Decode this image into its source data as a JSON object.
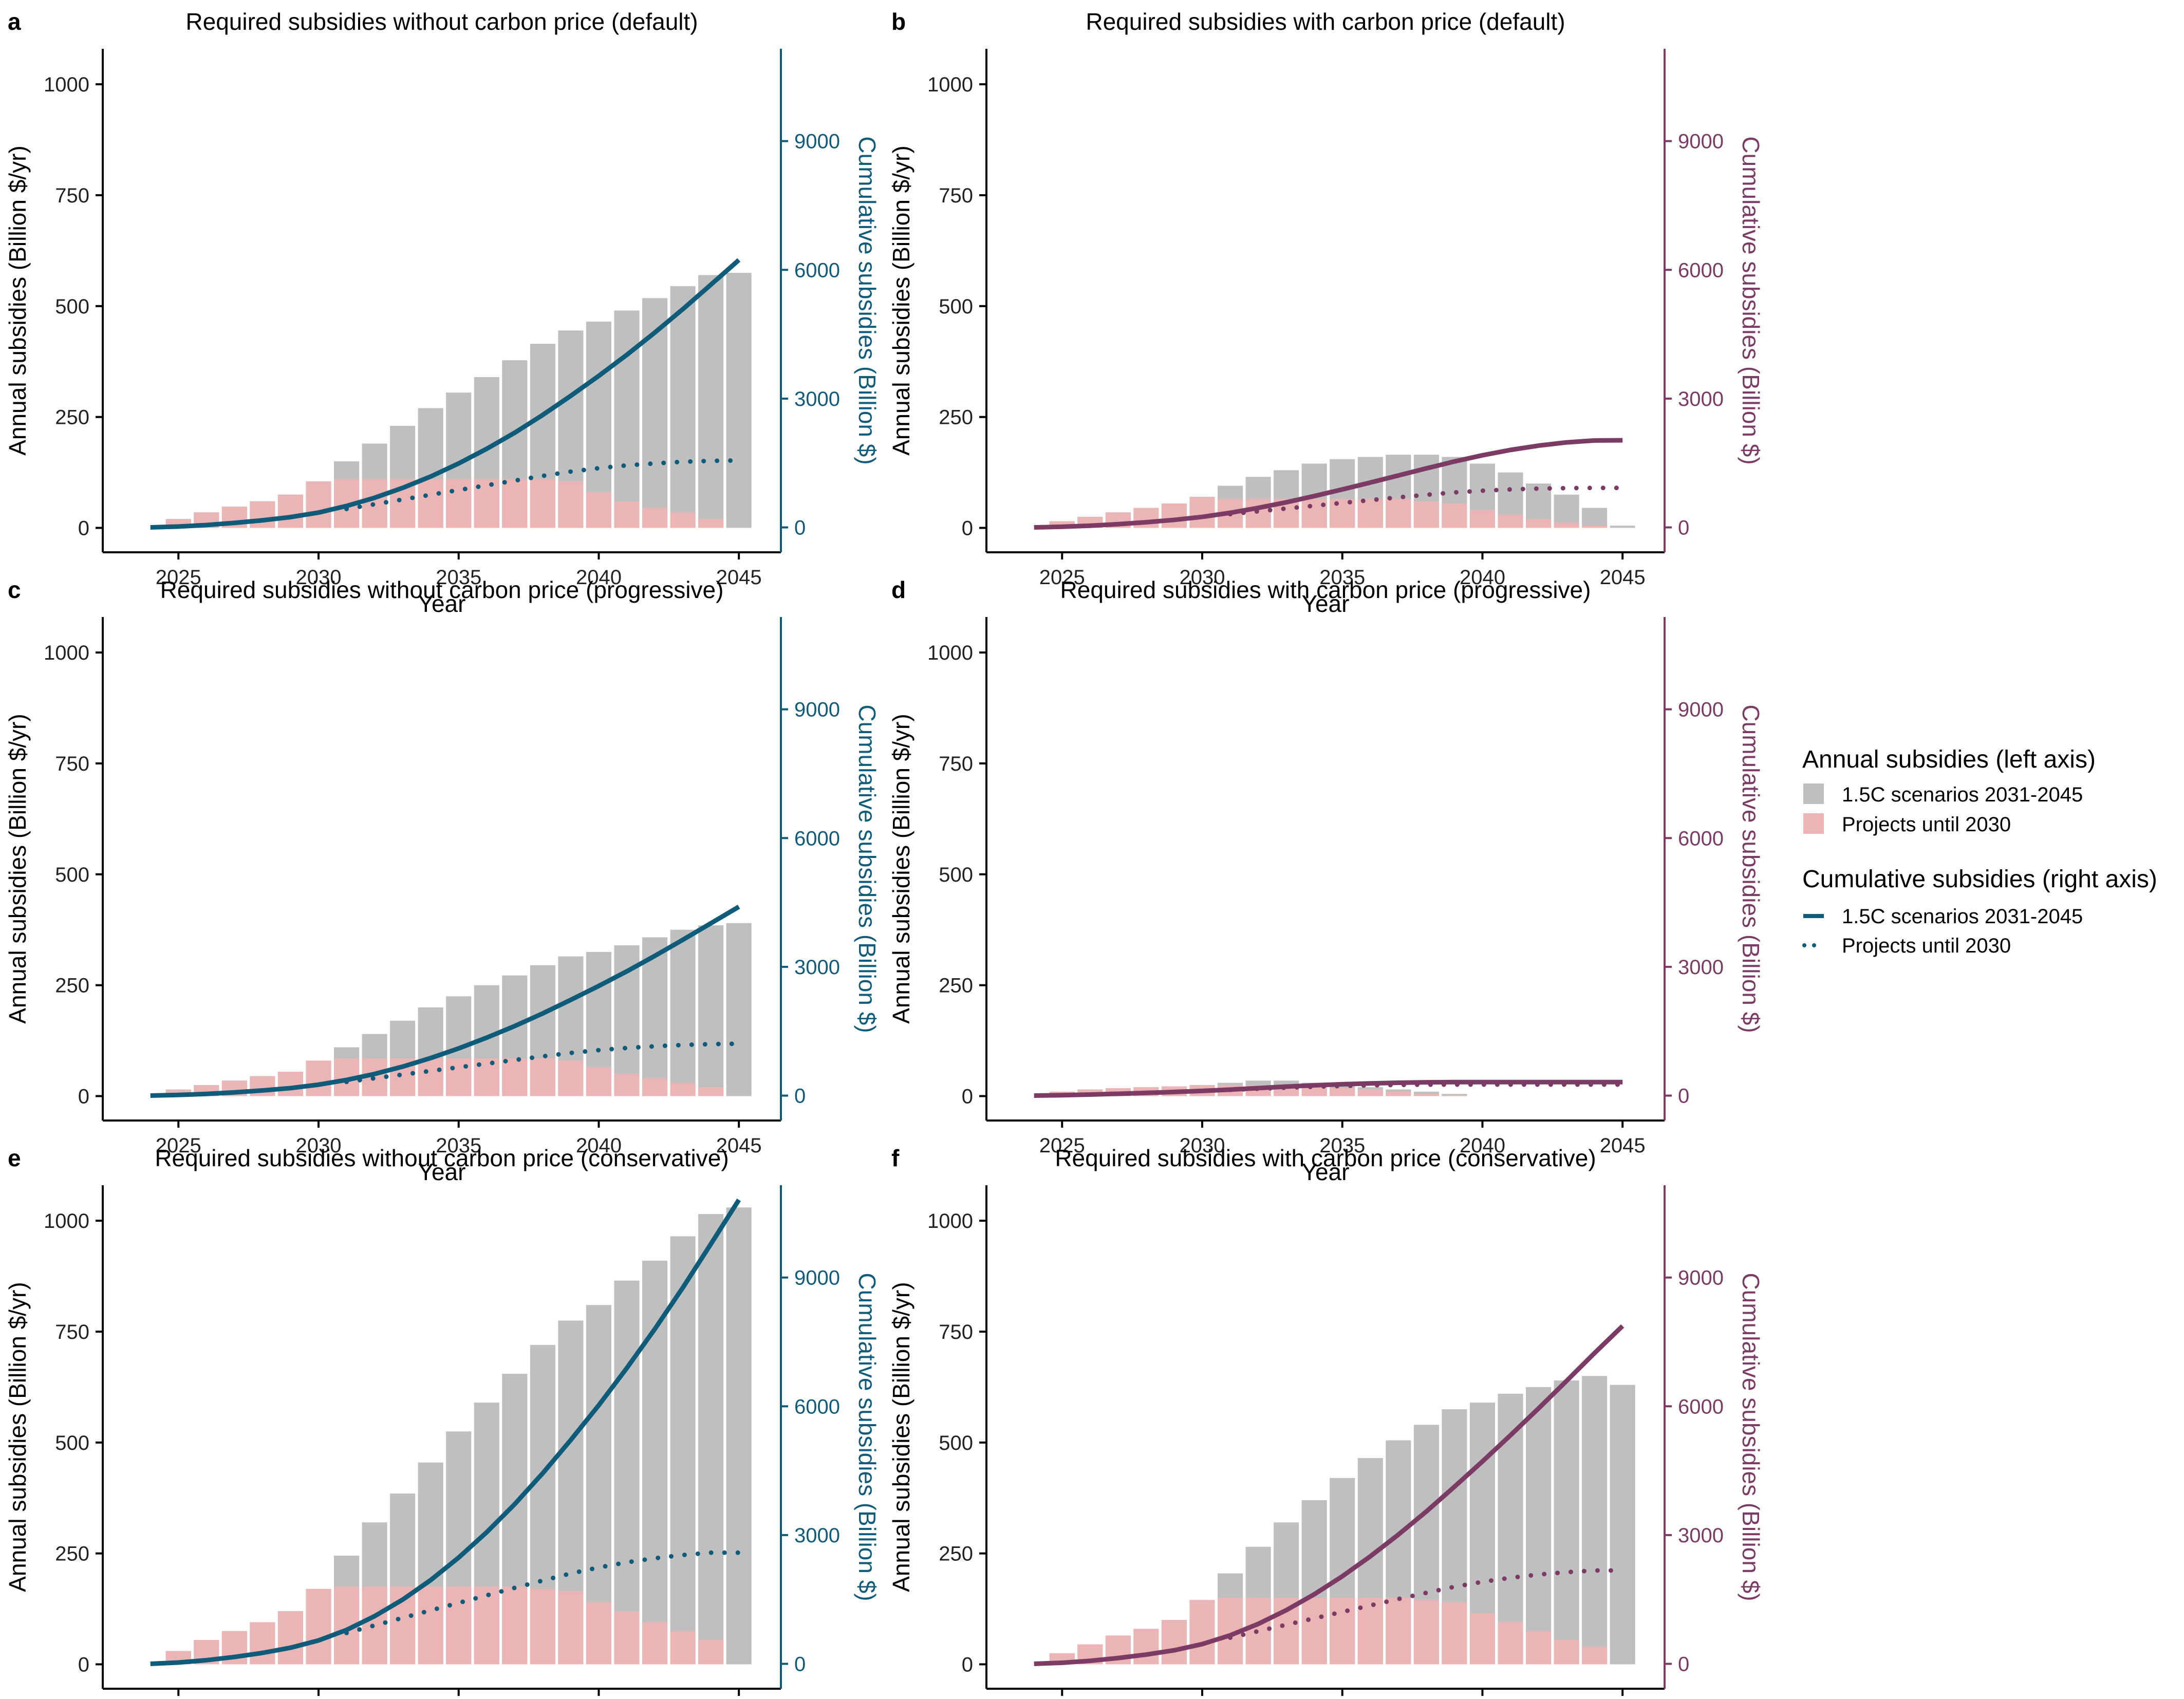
{
  "figure": {
    "x_axis_label": "Year",
    "y_left_label": "Annual subsidies (Billion $/yr)",
    "y_right_label": "Cumulative subsidies (Billion $)",
    "colors": {
      "bar_scenario": "#bfbfbf",
      "bar_projects": "#ecb5b5",
      "line_no_carbon": "#0f5b7a",
      "line_with_carbon": "#7b3b64"
    }
  },
  "legend": {
    "annual_title": "Annual subsidies (left axis)",
    "annual_items": [
      "1.5C scenarios 2031-2045",
      "Projects until 2030"
    ],
    "cumulative_title": "Cumulative subsidies (right axis)",
    "cumulative_items": [
      "1.5C scenarios 2031-2045",
      "Projects until 2030"
    ]
  },
  "chart_data": [
    {
      "panel": "a",
      "type": "bar",
      "title": "Required subsidies without carbon price (default)",
      "x": [
        2024,
        2025,
        2026,
        2027,
        2028,
        2029,
        2030,
        2031,
        2032,
        2033,
        2034,
        2035,
        2036,
        2037,
        2038,
        2039,
        2040,
        2041,
        2042,
        2043,
        2044,
        2045
      ],
      "xticks": [
        2025,
        2030,
        2035,
        2040,
        2045
      ],
      "xlim": [
        2022.3,
        2046.5
      ],
      "ylim": [
        -55,
        1080
      ],
      "yticks": [
        0,
        250,
        500,
        750,
        1000
      ],
      "y2lim": [
        -580,
        11150
      ],
      "y2ticks": [
        0,
        3000,
        6000,
        9000
      ],
      "right_axis_color": "line_no_carbon",
      "annual_scenario": [
        0,
        20,
        35,
        48,
        60,
        75,
        105,
        150,
        190,
        230,
        270,
        305,
        340,
        378,
        415,
        445,
        465,
        490,
        518,
        545,
        570,
        575
      ],
      "annual_projects": [
        0,
        20,
        35,
        48,
        60,
        75,
        105,
        110,
        110,
        110,
        110,
        110,
        110,
        110,
        110,
        105,
        80,
        60,
        45,
        35,
        20,
        0
      ],
      "cumulative_scenario": [
        0,
        20,
        55,
        105,
        165,
        240,
        345,
        500,
        690,
        920,
        1185,
        1490,
        1830,
        2205,
        2620,
        3065,
        3530,
        4020,
        4540,
        5085,
        5655,
        6230
      ],
      "cumulative_projects": [
        null,
        null,
        null,
        null,
        null,
        null,
        null,
        430,
        540,
        650,
        760,
        870,
        980,
        1090,
        1200,
        1300,
        1380,
        1445,
        1490,
        1530,
        1550,
        1560
      ]
    },
    {
      "panel": "b",
      "type": "bar",
      "title": "Required subsidies with carbon price (default)",
      "x": [
        2024,
        2025,
        2026,
        2027,
        2028,
        2029,
        2030,
        2031,
        2032,
        2033,
        2034,
        2035,
        2036,
        2037,
        2038,
        2039,
        2040,
        2041,
        2042,
        2043,
        2044,
        2045
      ],
      "xticks": [
        2025,
        2030,
        2035,
        2040,
        2045
      ],
      "xlim": [
        2022.3,
        2046.5
      ],
      "ylim": [
        -55,
        1080
      ],
      "yticks": [
        0,
        250,
        500,
        750,
        1000
      ],
      "y2lim": [
        -580,
        11150
      ],
      "y2ticks": [
        0,
        3000,
        6000,
        9000
      ],
      "right_axis_color": "line_with_carbon",
      "annual_scenario": [
        0,
        15,
        25,
        35,
        45,
        55,
        70,
        95,
        115,
        130,
        145,
        155,
        160,
        165,
        165,
        160,
        145,
        125,
        100,
        75,
        45,
        5
      ],
      "annual_projects": [
        0,
        15,
        25,
        35,
        45,
        55,
        70,
        65,
        65,
        65,
        65,
        65,
        65,
        65,
        60,
        55,
        40,
        30,
        20,
        12,
        5,
        0
      ],
      "cumulative_scenario": [
        0,
        15,
        40,
        75,
        120,
        175,
        245,
        340,
        455,
        585,
        730,
        885,
        1045,
        1210,
        1375,
        1535,
        1680,
        1805,
        1905,
        1980,
        2025,
        2030
      ],
      "cumulative_projects": [
        null,
        null,
        null,
        null,
        null,
        null,
        null,
        310,
        375,
        440,
        505,
        570,
        635,
        700,
        760,
        815,
        855,
        885,
        905,
        915,
        920,
        920
      ]
    },
    {
      "panel": "c",
      "type": "bar",
      "title": "Required subsidies without carbon price (progressive)",
      "x": [
        2024,
        2025,
        2026,
        2027,
        2028,
        2029,
        2030,
        2031,
        2032,
        2033,
        2034,
        2035,
        2036,
        2037,
        2038,
        2039,
        2040,
        2041,
        2042,
        2043,
        2044,
        2045
      ],
      "xticks": [
        2025,
        2030,
        2035,
        2040,
        2045
      ],
      "xlim": [
        2022.3,
        2046.5
      ],
      "ylim": [
        -55,
        1080
      ],
      "yticks": [
        0,
        250,
        500,
        750,
        1000
      ],
      "y2lim": [
        -580,
        11150
      ],
      "y2ticks": [
        0,
        3000,
        6000,
        9000
      ],
      "right_axis_color": "line_no_carbon",
      "annual_scenario": [
        0,
        15,
        25,
        35,
        45,
        55,
        80,
        110,
        140,
        170,
        200,
        225,
        250,
        272,
        295,
        315,
        325,
        340,
        358,
        375,
        385,
        390
      ],
      "annual_projects": [
        0,
        15,
        25,
        35,
        45,
        55,
        80,
        85,
        85,
        85,
        85,
        85,
        85,
        85,
        85,
        80,
        65,
        50,
        40,
        30,
        20,
        0
      ],
      "cumulative_scenario": [
        0,
        15,
        40,
        75,
        120,
        175,
        255,
        365,
        505,
        675,
        875,
        1100,
        1350,
        1620,
        1915,
        2230,
        2555,
        2895,
        3255,
        3630,
        4015,
        4400
      ],
      "cumulative_projects": [
        null,
        null,
        null,
        null,
        null,
        null,
        null,
        320,
        405,
        490,
        575,
        660,
        745,
        830,
        915,
        995,
        1060,
        1110,
        1150,
        1180,
        1200,
        1210
      ]
    },
    {
      "panel": "d",
      "type": "bar",
      "title": "Required subsidies with carbon price (progressive)",
      "x": [
        2024,
        2025,
        2026,
        2027,
        2028,
        2029,
        2030,
        2031,
        2032,
        2033,
        2034,
        2035,
        2036,
        2037,
        2038,
        2039,
        2040,
        2041,
        2042,
        2043,
        2044,
        2045
      ],
      "xticks": [
        2025,
        2030,
        2035,
        2040,
        2045
      ],
      "xlim": [
        2022.3,
        2046.5
      ],
      "ylim": [
        -55,
        1080
      ],
      "yticks": [
        0,
        250,
        500,
        750,
        1000
      ],
      "y2lim": [
        -580,
        11150
      ],
      "y2ticks": [
        0,
        3000,
        6000,
        9000
      ],
      "right_axis_color": "line_with_carbon",
      "annual_scenario": [
        0,
        10,
        15,
        18,
        20,
        22,
        25,
        30,
        35,
        35,
        30,
        25,
        20,
        15,
        10,
        5,
        0,
        0,
        0,
        0,
        0,
        0
      ],
      "annual_projects": [
        0,
        10,
        15,
        18,
        20,
        22,
        25,
        25,
        25,
        25,
        22,
        18,
        15,
        10,
        5,
        2,
        0,
        0,
        0,
        0,
        0,
        0
      ],
      "cumulative_scenario": [
        0,
        10,
        25,
        43,
        63,
        85,
        110,
        140,
        175,
        210,
        240,
        265,
        285,
        300,
        310,
        315,
        315,
        315,
        315,
        315,
        315,
        315
      ],
      "cumulative_projects": [
        null,
        null,
        null,
        null,
        null,
        null,
        null,
        135,
        160,
        185,
        207,
        225,
        240,
        250,
        255,
        257,
        257,
        257,
        257,
        257,
        257,
        257
      ]
    },
    {
      "panel": "e",
      "type": "bar",
      "title": "Required subsidies without carbon price (conservative)",
      "x": [
        2024,
        2025,
        2026,
        2027,
        2028,
        2029,
        2030,
        2031,
        2032,
        2033,
        2034,
        2035,
        2036,
        2037,
        2038,
        2039,
        2040,
        2041,
        2042,
        2043,
        2044,
        2045
      ],
      "xticks": [
        2025,
        2030,
        2035,
        2040,
        2045
      ],
      "xlim": [
        2022.3,
        2046.5
      ],
      "ylim": [
        -55,
        1080
      ],
      "yticks": [
        0,
        250,
        500,
        750,
        1000
      ],
      "y2lim": [
        -580,
        11150
      ],
      "y2ticks": [
        0,
        3000,
        6000,
        9000
      ],
      "right_axis_color": "line_no_carbon",
      "annual_scenario": [
        0,
        30,
        55,
        75,
        95,
        120,
        170,
        245,
        320,
        385,
        455,
        525,
        590,
        655,
        720,
        775,
        810,
        865,
        910,
        965,
        1015,
        1030
      ],
      "annual_projects": [
        0,
        30,
        55,
        75,
        95,
        120,
        170,
        175,
        175,
        175,
        175,
        175,
        175,
        175,
        170,
        165,
        140,
        120,
        95,
        75,
        55,
        0
      ],
      "cumulative_scenario": [
        0,
        30,
        85,
        160,
        255,
        375,
        545,
        790,
        1110,
        1495,
        1950,
        2475,
        3065,
        3720,
        4440,
        5215,
        6025,
        6890,
        7800,
        8765,
        9780,
        10810
      ],
      "cumulative_projects": [
        null,
        null,
        null,
        null,
        null,
        null,
        null,
        720,
        895,
        1070,
        1245,
        1420,
        1595,
        1770,
        1940,
        2105,
        2245,
        2365,
        2460,
        2535,
        2590,
        2590
      ]
    },
    {
      "panel": "f",
      "type": "bar",
      "title": "Required subsidies with carbon price (conservative)",
      "x": [
        2024,
        2025,
        2026,
        2027,
        2028,
        2029,
        2030,
        2031,
        2032,
        2033,
        2034,
        2035,
        2036,
        2037,
        2038,
        2039,
        2040,
        2041,
        2042,
        2043,
        2044,
        2045
      ],
      "xticks": [
        2025,
        2030,
        2035,
        2040,
        2045
      ],
      "xlim": [
        2022.3,
        2046.5
      ],
      "ylim": [
        -55,
        1080
      ],
      "yticks": [
        0,
        250,
        500,
        750,
        1000
      ],
      "y2lim": [
        -580,
        11150
      ],
      "y2ticks": [
        0,
        3000,
        6000,
        9000
      ],
      "right_axis_color": "line_with_carbon",
      "annual_scenario": [
        0,
        25,
        45,
        65,
        80,
        100,
        145,
        205,
        265,
        320,
        370,
        420,
        465,
        505,
        540,
        575,
        590,
        610,
        625,
        640,
        650,
        630
      ],
      "annual_projects": [
        0,
        25,
        45,
        65,
        80,
        100,
        145,
        150,
        150,
        150,
        150,
        150,
        150,
        150,
        145,
        140,
        115,
        95,
        75,
        55,
        40,
        0
      ],
      "cumulative_scenario": [
        0,
        25,
        70,
        135,
        215,
        315,
        460,
        665,
        930,
        1250,
        1620,
        2040,
        2505,
        3010,
        3550,
        4125,
        4715,
        5325,
        5950,
        6590,
        7240,
        7870
      ],
      "cumulative_projects": [
        null,
        null,
        null,
        null,
        null,
        null,
        null,
        610,
        760,
        910,
        1060,
        1210,
        1360,
        1510,
        1655,
        1795,
        1910,
        2005,
        2080,
        2135,
        2175,
        2175
      ]
    }
  ]
}
